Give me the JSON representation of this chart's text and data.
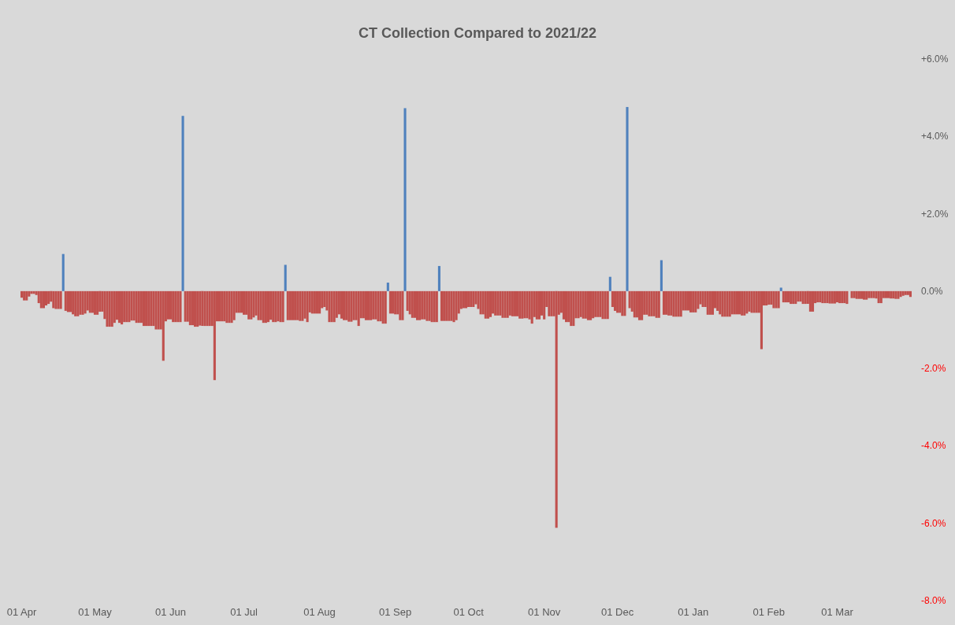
{
  "chart_data": {
    "type": "bar",
    "title": "CT Collection Compared to 2021/22",
    "stacked": true,
    "grid": false,
    "ylim": [
      -8,
      6
    ],
    "yticks": [
      {
        "value": -8,
        "label": "-8.0%"
      },
      {
        "value": -6,
        "label": "-6.0%"
      },
      {
        "value": -4,
        "label": "-4.0%"
      },
      {
        "value": -2,
        "label": "-2.0%"
      },
      {
        "value": 0,
        "label": "0.0%"
      },
      {
        "value": 2,
        "label": "+2.0%"
      },
      {
        "value": 4,
        "label": "+4.0%"
      },
      {
        "value": 6,
        "label": "+6.0%"
      }
    ],
    "categories": [
      "01 Apr",
      null,
      null,
      null,
      null,
      null,
      null,
      null,
      null,
      null,
      null,
      null,
      null,
      null,
      null,
      null,
      null,
      null,
      null,
      null,
      null,
      null,
      null,
      null,
      null,
      null,
      null,
      null,
      null,
      null,
      "01 May",
      null,
      null,
      null,
      null,
      null,
      null,
      null,
      null,
      null,
      null,
      null,
      null,
      null,
      null,
      null,
      null,
      null,
      null,
      null,
      null,
      null,
      null,
      null,
      null,
      null,
      null,
      null,
      null,
      null,
      null,
      "01 Jun",
      null,
      null,
      null,
      null,
      null,
      null,
      null,
      null,
      null,
      null,
      null,
      null,
      null,
      null,
      null,
      null,
      null,
      null,
      null,
      null,
      null,
      null,
      null,
      null,
      null,
      null,
      null,
      null,
      null,
      "01 Jul",
      null,
      null,
      null,
      null,
      null,
      null,
      null,
      null,
      null,
      null,
      null,
      null,
      null,
      null,
      null,
      null,
      null,
      null,
      null,
      null,
      null,
      null,
      null,
      null,
      null,
      null,
      null,
      null,
      null,
      null,
      "01 Aug",
      null,
      null,
      null,
      null,
      null,
      null,
      null,
      null,
      null,
      null,
      null,
      null,
      null,
      null,
      null,
      null,
      null,
      null,
      null,
      null,
      null,
      null,
      null,
      null,
      null,
      null,
      null,
      null,
      null,
      null,
      "01 Sep",
      null,
      null,
      null,
      null,
      null,
      null,
      null,
      null,
      null,
      null,
      null,
      null,
      null,
      null,
      null,
      null,
      null,
      null,
      null,
      null,
      null,
      null,
      null,
      null,
      null,
      null,
      null,
      null,
      null,
      "01 Oct",
      null,
      null,
      null,
      null,
      null,
      null,
      null,
      null,
      null,
      null,
      null,
      null,
      null,
      null,
      null,
      null,
      null,
      null,
      null,
      null,
      null,
      null,
      null,
      null,
      null,
      null,
      null,
      null,
      null,
      null,
      "01 Nov",
      null,
      null,
      null,
      null,
      null,
      null,
      null,
      null,
      null,
      null,
      null,
      null,
      null,
      null,
      null,
      null,
      null,
      null,
      null,
      null,
      null,
      null,
      null,
      null,
      null,
      null,
      null,
      null,
      null,
      "01 Dec",
      null,
      null,
      null,
      null,
      null,
      null,
      null,
      null,
      null,
      null,
      null,
      null,
      null,
      null,
      null,
      null,
      null,
      null,
      null,
      null,
      null,
      null,
      null,
      null,
      null,
      null,
      null,
      null,
      null,
      null,
      "01 Jan",
      null,
      null,
      null,
      null,
      null,
      null,
      null,
      null,
      null,
      null,
      null,
      null,
      null,
      null,
      null,
      null,
      null,
      null,
      null,
      null,
      null,
      null,
      null,
      null,
      null,
      null,
      null,
      null,
      null,
      null,
      "01 Feb",
      null,
      null,
      null,
      null,
      null,
      null,
      null,
      null,
      null,
      null,
      null,
      null,
      null,
      null,
      null,
      null,
      null,
      null,
      null,
      null,
      null,
      null,
      null,
      null,
      null,
      null,
      null,
      "01 Mar",
      null,
      null,
      null,
      null,
      null,
      null,
      null,
      null,
      null,
      null,
      null,
      null,
      null,
      null,
      null,
      null,
      null,
      null,
      null,
      null,
      null,
      null,
      null,
      null,
      null,
      null,
      null,
      null,
      null,
      null
    ],
    "series": [
      {
        "color": "#4f81bd",
        "values": [
          null,
          null,
          null,
          null,
          null,
          null,
          null,
          null,
          null,
          null,
          null,
          null,
          null,
          null,
          null,
          null,
          null,
          0.96,
          null,
          null,
          null,
          null,
          null,
          null,
          null,
          null,
          null,
          null,
          null,
          null,
          null,
          null,
          null,
          null,
          null,
          null,
          null,
          null,
          null,
          null,
          null,
          null,
          null,
          null,
          null,
          null,
          null,
          null,
          null,
          null,
          null,
          null,
          null,
          null,
          null,
          null,
          null,
          null,
          null,
          null,
          null,
          null,
          null,
          null,
          null,
          null,
          4.53,
          null,
          null,
          null,
          null,
          null,
          null,
          null,
          null,
          null,
          null,
          null,
          null,
          null,
          null,
          null,
          null,
          null,
          null,
          null,
          null,
          null,
          null,
          null,
          null,
          null,
          null,
          null,
          null,
          null,
          null,
          null,
          null,
          null,
          null,
          null,
          null,
          null,
          null,
          null,
          null,
          null,
          0.68,
          null,
          null,
          null,
          null,
          null,
          null,
          null,
          null,
          null,
          null,
          null,
          null,
          null,
          null,
          null,
          null,
          null,
          null,
          null,
          null,
          null,
          null,
          null,
          null,
          null,
          null,
          null,
          null,
          null,
          null,
          null,
          null,
          null,
          null,
          null,
          null,
          null,
          null,
          null,
          null,
          null,
          0.22,
          null,
          null,
          null,
          null,
          null,
          null,
          4.73,
          null,
          null,
          null,
          null,
          null,
          null,
          null,
          null,
          null,
          null,
          null,
          null,
          null,
          0.65,
          null,
          null,
          null,
          null,
          null,
          null,
          null,
          null,
          null,
          null,
          null,
          null,
          null,
          null,
          null,
          null,
          null,
          null,
          null,
          null,
          null,
          null,
          null,
          null,
          null,
          null,
          null,
          null,
          null,
          null,
          null,
          null,
          null,
          null,
          null,
          null,
          null,
          null,
          null,
          null,
          null,
          null,
          null,
          null,
          null,
          null,
          null,
          null,
          null,
          null,
          null,
          null,
          null,
          null,
          null,
          null,
          null,
          null,
          null,
          null,
          null,
          null,
          null,
          null,
          null,
          null,
          null,
          null,
          null,
          0.37,
          null,
          null,
          null,
          null,
          null,
          null,
          4.76,
          null,
          null,
          null,
          null,
          null,
          null,
          null,
          null,
          null,
          null,
          null,
          null,
          null,
          0.8,
          null,
          null,
          null,
          null,
          null,
          null,
          null,
          null,
          null,
          null,
          null,
          null,
          null,
          null,
          null,
          null,
          null,
          null,
          null,
          null,
          null,
          null,
          null,
          null,
          null,
          null,
          null,
          null,
          null,
          null,
          null,
          null,
          null,
          null,
          null,
          null,
          null,
          null,
          null,
          null,
          null,
          null,
          null,
          null,
          null,
          null,
          null,
          null,
          0.09,
          null,
          null,
          null,
          null,
          null,
          null,
          null,
          null,
          null,
          null,
          null,
          null,
          null,
          null,
          null,
          null,
          null,
          null,
          null,
          null,
          null,
          null,
          null,
          null,
          null,
          null,
          null,
          null,
          null,
          null,
          null,
          null,
          null,
          null,
          null,
          null,
          null,
          null,
          null,
          null,
          null,
          null,
          null,
          null,
          null,
          null,
          null,
          null,
          null,
          null,
          null,
          null,
          null
        ]
      },
      {
        "color": "#c0504d",
        "values": [
          -0.17,
          -0.24,
          -0.24,
          -0.14,
          -0.07,
          -0.07,
          -0.1,
          -0.31,
          -0.44,
          -0.44,
          -0.37,
          -0.33,
          -0.27,
          -0.44,
          -0.46,
          -0.46,
          -0.46,
          null,
          -0.51,
          -0.54,
          -0.54,
          -0.6,
          -0.65,
          -0.65,
          -0.61,
          -0.61,
          -0.58,
          -0.5,
          -0.56,
          -0.56,
          -0.61,
          -0.61,
          -0.53,
          -0.53,
          -0.72,
          -0.92,
          -0.92,
          -0.92,
          -0.82,
          -0.74,
          -0.82,
          -0.86,
          -0.8,
          -0.8,
          -0.8,
          -0.76,
          -0.76,
          -0.82,
          -0.82,
          -0.82,
          -0.9,
          -0.9,
          -0.9,
          -0.9,
          -0.9,
          -0.99,
          -0.99,
          -0.99,
          -1.8,
          -0.78,
          -0.73,
          -0.73,
          -0.8,
          -0.8,
          -0.8,
          -0.8,
          null,
          -0.79,
          -0.79,
          -0.88,
          -0.88,
          -0.92,
          -0.92,
          -0.89,
          -0.9,
          -0.9,
          -0.9,
          -0.9,
          -0.9,
          -2.3,
          -0.78,
          -0.78,
          -0.78,
          -0.78,
          -0.82,
          -0.82,
          -0.82,
          -0.75,
          -0.56,
          -0.56,
          -0.56,
          -0.61,
          -0.61,
          -0.73,
          -0.73,
          -0.68,
          -0.63,
          -0.75,
          -0.75,
          -0.82,
          -0.82,
          -0.8,
          -0.74,
          -0.8,
          -0.8,
          -0.78,
          -0.8,
          -0.8,
          null,
          -0.75,
          -0.75,
          -0.75,
          -0.75,
          -0.75,
          -0.77,
          -0.77,
          -0.71,
          -0.8,
          -0.55,
          -0.58,
          -0.58,
          -0.58,
          -0.58,
          -0.44,
          -0.41,
          -0.5,
          -0.8,
          -0.8,
          -0.8,
          -0.69,
          -0.6,
          -0.71,
          -0.75,
          -0.75,
          -0.79,
          -0.79,
          -0.75,
          -0.75,
          -0.9,
          -0.7,
          -0.7,
          -0.75,
          -0.75,
          -0.75,
          -0.73,
          -0.73,
          -0.78,
          -0.78,
          -0.84,
          -0.84,
          null,
          -0.58,
          -0.58,
          -0.6,
          -0.6,
          -0.75,
          -0.75,
          null,
          -0.51,
          -0.6,
          -0.69,
          -0.69,
          -0.75,
          -0.75,
          -0.73,
          -0.73,
          -0.77,
          -0.77,
          -0.8,
          -0.8,
          -0.8,
          null,
          -0.77,
          -0.77,
          -0.77,
          -0.77,
          -0.77,
          -0.8,
          -0.75,
          -0.58,
          -0.46,
          -0.44,
          -0.44,
          -0.41,
          -0.41,
          -0.41,
          -0.34,
          -0.46,
          -0.6,
          -0.6,
          -0.71,
          -0.71,
          -0.67,
          -0.58,
          -0.63,
          -0.63,
          -0.63,
          -0.69,
          -0.69,
          -0.69,
          -0.63,
          -0.65,
          -0.65,
          -0.65,
          -0.71,
          -0.71,
          -0.7,
          -0.7,
          -0.73,
          -0.84,
          -0.67,
          -0.73,
          -0.73,
          -0.63,
          -0.73,
          -0.41,
          -0.65,
          -0.65,
          -0.65,
          -6.12,
          -0.61,
          -0.56,
          -0.73,
          -0.8,
          -0.8,
          -0.9,
          -0.9,
          -0.7,
          -0.7,
          -0.67,
          -0.71,
          -0.71,
          -0.75,
          -0.75,
          -0.7,
          -0.67,
          -0.67,
          -0.67,
          -0.72,
          -0.72,
          -0.72,
          null,
          -0.41,
          -0.51,
          -0.56,
          -0.56,
          -0.64,
          -0.64,
          null,
          -0.44,
          -0.53,
          -0.68,
          -0.68,
          -0.75,
          -0.75,
          -0.61,
          -0.61,
          -0.65,
          -0.65,
          -0.65,
          -0.69,
          -0.69,
          null,
          -0.61,
          -0.61,
          -0.63,
          -0.63,
          -0.66,
          -0.66,
          -0.66,
          -0.66,
          -0.5,
          -0.5,
          -0.5,
          -0.55,
          -0.55,
          -0.55,
          -0.46,
          -0.34,
          -0.41,
          -0.41,
          -0.61,
          -0.61,
          -0.61,
          -0.44,
          -0.51,
          -0.6,
          -0.66,
          -0.66,
          -0.66,
          -0.66,
          -0.6,
          -0.6,
          -0.6,
          -0.6,
          -0.63,
          -0.63,
          -0.58,
          -0.53,
          -0.56,
          -0.56,
          -0.56,
          -0.56,
          -1.5,
          -0.37,
          -0.37,
          -0.35,
          -0.35,
          -0.44,
          -0.44,
          -0.44,
          null,
          -0.29,
          -0.29,
          -0.29,
          -0.33,
          -0.33,
          -0.33,
          -0.27,
          -0.27,
          -0.33,
          -0.33,
          -0.33,
          -0.53,
          -0.53,
          -0.31,
          -0.29,
          -0.29,
          -0.31,
          -0.31,
          -0.31,
          -0.32,
          -0.32,
          -0.32,
          -0.29,
          -0.31,
          -0.31,
          -0.31,
          -0.33,
          0,
          -0.18,
          -0.18,
          -0.2,
          -0.2,
          -0.2,
          -0.22,
          -0.22,
          -0.18,
          -0.18,
          -0.18,
          -0.19,
          -0.31,
          -0.31,
          -0.18,
          -0.18,
          -0.18,
          -0.19,
          -0.19,
          -0.2,
          -0.2,
          -0.15,
          -0.12,
          -0.1,
          -0.1,
          -0.15
        ]
      }
    ]
  }
}
